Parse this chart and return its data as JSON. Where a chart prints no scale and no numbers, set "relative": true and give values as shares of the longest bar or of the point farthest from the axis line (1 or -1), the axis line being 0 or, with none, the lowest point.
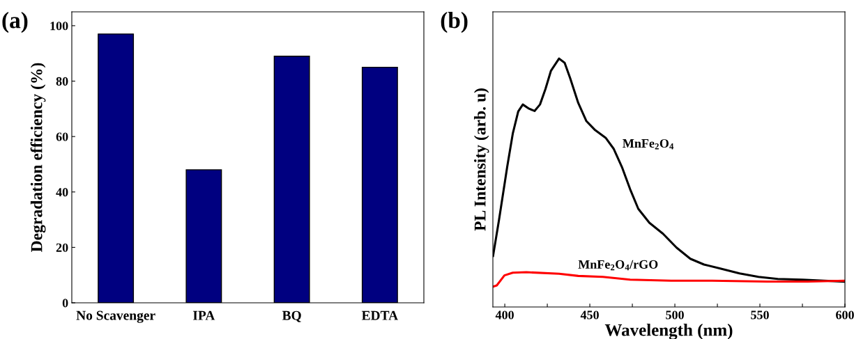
{
  "chart_data": [
    {
      "type": "bar",
      "categories": [
        "No Scavenger",
        "IPA",
        "BQ",
        "EDTA"
      ],
      "values": [
        97,
        48,
        89,
        85
      ],
      "color": "#000080",
      "ylabel": "Degradation efficiency (%)",
      "ylim": [
        0,
        105
      ],
      "yticks": [
        0,
        20,
        40,
        60,
        80,
        100
      ],
      "annotations": [
        "(a)"
      ],
      "grid": false,
      "legend": false
    },
    {
      "type": "line",
      "relative": true,
      "xlabel": "Wavelength (nm)",
      "ylabel": "PL Intensity (arb. u)",
      "xlim": [
        393,
        600
      ],
      "xticks": [
        400,
        {
          "value": 425,
          "label": null
        },
        450,
        {
          "value": 475,
          "label": null
        },
        500,
        {
          "value": 525,
          "label": null
        },
        550,
        {
          "value": 575,
          "label": null
        },
        600
      ],
      "tick_labels": "x",
      "grid": false,
      "legend": false,
      "marker": "none",
      "line_style": "solid",
      "annotations": [
        "(b)"
      ],
      "series": [
        {
          "name": "MnFe$_{2}$O$_{4}$",
          "color": "#000000",
          "x": [
            393.1,
            396.6,
            401.4,
            404.7,
            407.9,
            410.6,
            414.3,
            417.5,
            420.7,
            423.9,
            427.1,
            431.9,
            435.2,
            438.4,
            443.2,
            448.0,
            452.8,
            459.3,
            464.1,
            468.9,
            473.7,
            478.5,
            485.0,
            493.0,
            501.0,
            509.1,
            517.1,
            526.7,
            538.0,
            549.2,
            560.5,
            574.9,
            587.8,
            600
          ],
          "values": [
            0.205,
            0.35,
            0.563,
            0.698,
            0.787,
            0.815,
            0.798,
            0.789,
            0.815,
            0.877,
            0.95,
            1.0,
            0.983,
            0.922,
            0.821,
            0.748,
            0.714,
            0.681,
            0.636,
            0.563,
            0.474,
            0.395,
            0.339,
            0.295,
            0.239,
            0.194,
            0.171,
            0.155,
            0.135,
            0.121,
            0.113,
            0.11,
            0.106,
            0.102
          ]
        },
        {
          "name": "MnFe$_{2}$O$_{4}$/rGO",
          "color": "#ff0000",
          "x": [
            393.1,
            395.3,
            399.8,
            404.7,
            412.7,
            431.9,
            443.2,
            457.7,
            473.7,
            497.8,
            521.9,
            554.1,
            578.2,
            600
          ],
          "values": [
            0.082,
            0.087,
            0.127,
            0.138,
            0.14,
            0.134,
            0.125,
            0.121,
            0.11,
            0.106,
            0.106,
            0.102,
            0.102,
            0.106
          ]
        }
      ]
    }
  ]
}
